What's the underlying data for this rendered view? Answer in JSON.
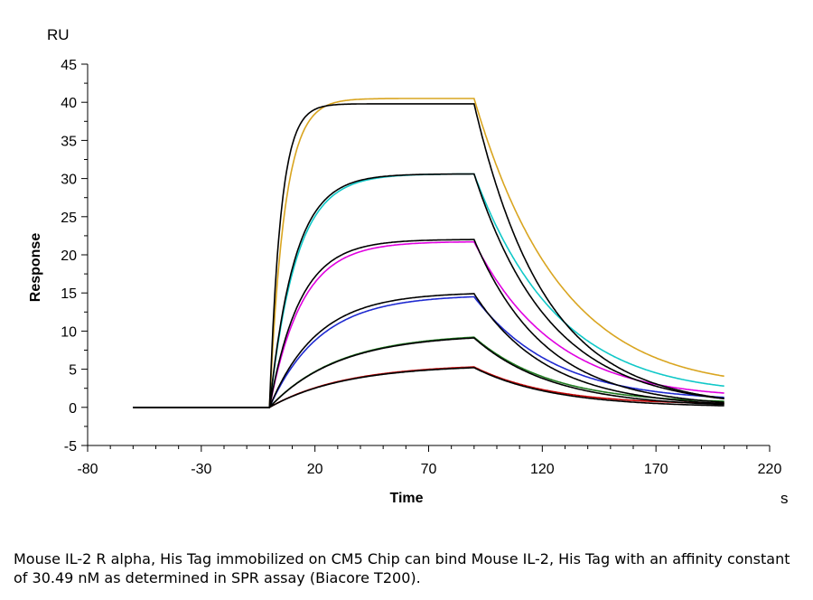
{
  "chart_data": {
    "type": "line",
    "title": "",
    "xlabel": "Time",
    "ylabel": "Response",
    "x_unit": "s",
    "y_unit": "RU",
    "xlim": [
      -80,
      220
    ],
    "ylim": [
      -5,
      45
    ],
    "x_ticks": [
      -80,
      -30,
      20,
      70,
      120,
      170,
      220
    ],
    "y_ticks": [
      -5,
      0,
      5,
      10,
      15,
      20,
      25,
      30,
      35,
      40,
      45
    ],
    "grid": false,
    "legend": "none",
    "injection": {
      "baseline_start": -60,
      "association_start": 0,
      "dissociation_start": 90,
      "end": 200
    },
    "series": [
      {
        "color": "#c00000",
        "association_end": 5.3,
        "kon_rate": 0.03,
        "koff_rate": 0.028,
        "tail_end": 0.3
      },
      {
        "color": "#1f7a1f",
        "association_end": 9.2,
        "kon_rate": 0.033,
        "koff_rate": 0.028,
        "tail_end": 0.4
      },
      {
        "color": "#1f2ad0",
        "association_end": 14.5,
        "kon_rate": 0.045,
        "koff_rate": 0.027,
        "tail_end": 0.6
      },
      {
        "color": "#e000e0",
        "association_end": 21.7,
        "kon_rate": 0.07,
        "koff_rate": 0.027,
        "tail_end": 0.8
      },
      {
        "color": "#10c8c8",
        "association_end": 30.6,
        "kon_rate": 0.085,
        "koff_rate": 0.026,
        "tail_end": 1.1
      },
      {
        "color": "#d9a520",
        "association_end": 40.5,
        "kon_rate": 0.15,
        "koff_rate": 0.025,
        "tail_end": 1.6
      }
    ],
    "fit_color": "#000000",
    "fits": [
      {
        "association_end": 5.2,
        "kon_rate": 0.03,
        "koff_rate": 0.029
      },
      {
        "association_end": 9.1,
        "kon_rate": 0.033,
        "koff_rate": 0.029
      },
      {
        "association_end": 14.9,
        "kon_rate": 0.048,
        "koff_rate": 0.031
      },
      {
        "association_end": 22.0,
        "kon_rate": 0.075,
        "koff_rate": 0.032
      },
      {
        "association_end": 30.6,
        "kon_rate": 0.09,
        "koff_rate": 0.03
      },
      {
        "association_end": 39.8,
        "kon_rate": 0.2,
        "koff_rate": 0.032
      }
    ]
  },
  "caption": "Mouse IL-2 R alpha, His Tag immobilized on CM5 Chip can bind Mouse IL-2, His Tag with an affinity constant of 30.49 nM as determined in SPR assay (Biacore T200)."
}
